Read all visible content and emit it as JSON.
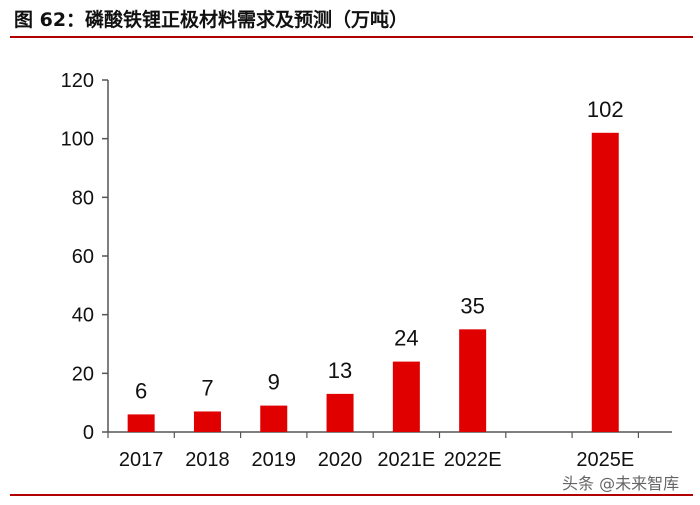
{
  "header": {
    "title": "图 62：磷酸铁锂正极材料需求及预测（万吨）"
  },
  "watermark": {
    "text": "头条 @未来智库"
  },
  "colors": {
    "bar": "#e00000",
    "rule": "#b00000",
    "axis": "#555555",
    "text": "#111111"
  },
  "chart_data": {
    "type": "bar",
    "title": "磷酸铁锂正极材料需求及预测（万吨）",
    "xlabel": "",
    "ylabel": "",
    "categories": [
      "2017",
      "2018",
      "2019",
      "2020",
      "2021E",
      "2022E",
      "2025E"
    ],
    "values": [
      6,
      7,
      9,
      13,
      24,
      35,
      102
    ],
    "data_labels": [
      "6",
      "7",
      "9",
      "13",
      "24",
      "35",
      "102"
    ],
    "ylim": [
      0,
      120
    ],
    "yticks": [
      "0",
      "20",
      "40",
      "60",
      "80",
      "100",
      "120"
    ],
    "grid": false,
    "legend": "none"
  }
}
